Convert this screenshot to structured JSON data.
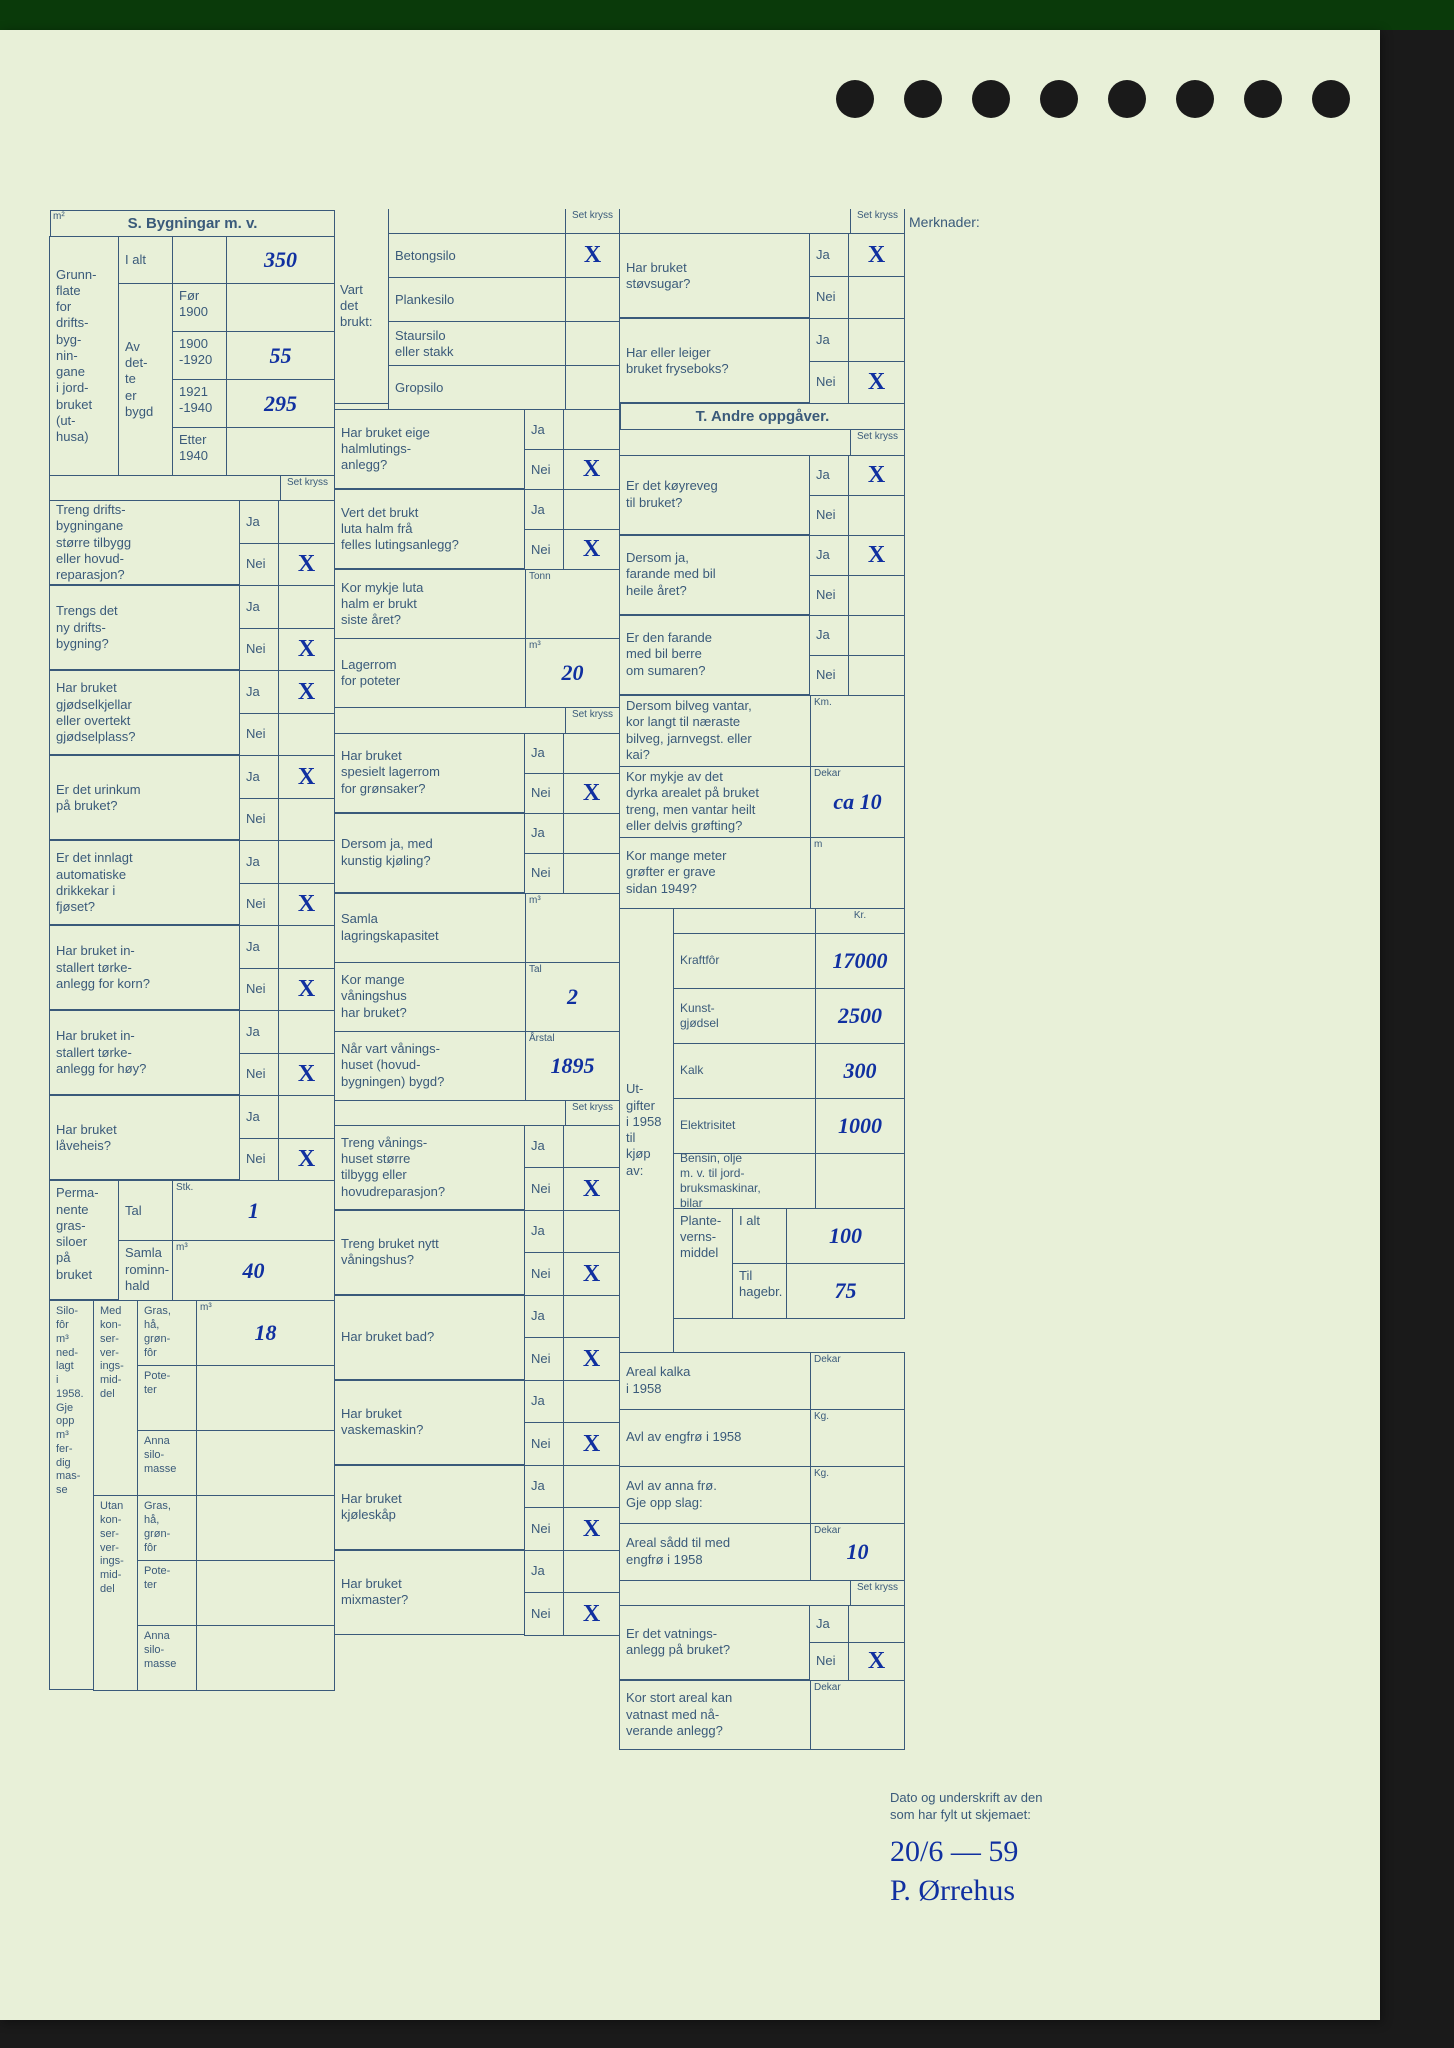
{
  "section_s_title": "S. Bygningar m. v.",
  "section_t_title": "T. Andre oppgåver.",
  "merknader_label": "Merknader:",
  "set_kryss": "Set kryss",
  "ja": "Ja",
  "nei": "Nei",
  "buildings": {
    "grunnflate_label": "Grunn-\nflate\nfor\ndrifts-\nbyg-\nnin-\ngane\ni jord-\nbruket\n(ut-\nhusa)",
    "i_alt": "I alt",
    "av_dette_bygd": "Av\ndet-\nte\ner\nbygd",
    "m2_unit": "m²",
    "periods": {
      "for_1900": "Før\n1900",
      "p1900_1920": "1900\n-1920",
      "p1921_1940": "1921\n-1940",
      "etter_1940": "Etter\n1940"
    },
    "values": {
      "i_alt": "350",
      "for_1900": "",
      "p1900_1920": "55",
      "p1921_1940": "295",
      "etter_1940": ""
    }
  },
  "col1_questions": [
    {
      "q": "Treng drifts-\nbygningane\nstørre tilbygg\neller hovud-\nreparasjon?",
      "ja": "",
      "nei": "X"
    },
    {
      "q": "Trengs det\nny drifts-\nbygning?",
      "ja": "",
      "nei": "X"
    },
    {
      "q": "Har bruket\ngjødselkjellar\neller overtekt\ngjødselplass?",
      "ja": "X",
      "nei": ""
    },
    {
      "q": "Er det urinkum\npå bruket?",
      "ja": "X",
      "nei": ""
    },
    {
      "q": "Er det innlagt\nautomatiske\ndrikkekar i\nfjøset?",
      "ja": "",
      "nei": "X"
    },
    {
      "q": "Har bruket in-\nstallert tørke-\nanlegg for korn?",
      "ja": "",
      "nei": "X"
    },
    {
      "q": "Har bruket in-\nstallert tørke-\nanlegg for høy?",
      "ja": "",
      "nei": "X"
    },
    {
      "q": "Har bruket\nlåveheis?",
      "ja": "",
      "nei": "X"
    }
  ],
  "grassiloer": {
    "label": "Perma-\nnente\ngras-\nsiloer\npå\nbruket",
    "tal_label": "Tal",
    "tal": "1",
    "rom_label": "Samla\nrominn-\nhald",
    "rom_unit": "m³",
    "rom": "40"
  },
  "silofor": {
    "title": "Silo-\nfôr\nm³\nned-\nlagt\ni\n1958.\nGje\nopp\nm³\nfer-\ndig\nmas-\nse",
    "med_label": "Med\nkon-\nser-\nver-\nings-\nmid-\ndel",
    "utan_label": "Utan\nkon-\nser-\nver-\nings-\nmid-\ndel",
    "gras_label": "Gras,\nhå,\ngrøn-\nfôr",
    "poteter_label": "Pote-\nter",
    "anna_label": "Anna\nsilo-\nmasse",
    "m2_unit": "m³",
    "med_gras": "18",
    "med_poteter": "",
    "med_anna": "",
    "utan_gras": "",
    "utan_poteter": "",
    "utan_anna": ""
  },
  "col2_top": {
    "vart_det_brukt": "Vart\ndet\nbrukt:",
    "items": [
      {
        "l": "Betongsilo",
        "v": "X"
      },
      {
        "l": "Plankesilo",
        "v": ""
      },
      {
        "l": "Staursilo\neller stakk",
        "v": ""
      },
      {
        "l": "Gropsilo",
        "v": ""
      }
    ]
  },
  "col2_questions": [
    {
      "q": "Har bruket eige\nhalmlutings-\nanlegg?",
      "ja": "",
      "nei": "X"
    },
    {
      "q": "Vert det brukt\nluta halm frå\nfelles lutingsanlegg?",
      "ja": "",
      "nei": "X"
    }
  ],
  "col2_values": [
    {
      "q": "Kor mykje luta\nhalm er brukt\nsiste året?",
      "unit": "Tonn",
      "v": ""
    },
    {
      "q": "Lagerrom\nfor poteter",
      "unit": "m³",
      "v": "20"
    }
  ],
  "col2_questions2": [
    {
      "q": "Har bruket\nspesielt lagerrom\nfor grønsaker?",
      "ja": "",
      "nei": "X"
    },
    {
      "q": "Dersom ja, med\nkunstig kjøling?",
      "ja": "",
      "nei": ""
    }
  ],
  "col2_values2": [
    {
      "q": "Samla\nlagringskapasitet",
      "unit": "m³",
      "v": ""
    },
    {
      "q": "Kor mange\nvåningshus\nhar bruket?",
      "unit": "Tal",
      "v": "2"
    },
    {
      "q": "Når vart vånings-\nhuset (hovud-\nbygningen) bygd?",
      "unit": "Årstal",
      "v": "1895"
    }
  ],
  "col2_questions3": [
    {
      "q": "Treng vånings-\nhuset større\ntilbygg eller\nhovudreparasjon?",
      "ja": "",
      "nei": "X"
    },
    {
      "q": "Treng bruket nytt\nvåningshus?",
      "ja": "",
      "nei": "X"
    },
    {
      "q": "Har bruket bad?",
      "ja": "",
      "nei": "X"
    },
    {
      "q": "Har bruket\nvaskemaskin?",
      "ja": "",
      "nei": "X"
    },
    {
      "q": "Har bruket\nkjøleskåp",
      "ja": "",
      "nei": "X"
    },
    {
      "q": "Har bruket\nmixmaster?",
      "ja": "",
      "nei": "X"
    }
  ],
  "col3_questions": [
    {
      "q": "Har bruket\nstøvsugar?",
      "ja": "X",
      "nei": ""
    },
    {
      "q": "Har eller leiger\nbruket fryseboks?",
      "ja": "",
      "nei": "X"
    }
  ],
  "t_questions": [
    {
      "q": "Er det køyreveg\ntil bruket?",
      "ja": "X",
      "nei": ""
    },
    {
      "q": "Dersom ja,\nfarande med bil\nheile året?",
      "ja": "X",
      "nei": ""
    },
    {
      "q": "Er den farande\nmed bil berre\nom sumaren?",
      "ja": "",
      "nei": ""
    }
  ],
  "t_values": [
    {
      "q": "Dersom bilveg vantar,\nkor langt til næraste\nbilveg, jarnvegst. eller\nkai?",
      "unit": "Km.",
      "v": ""
    },
    {
      "q": "Kor mykje av det\ndyrka arealet på bruket\ntreng, men vantar heilt\neller delvis grøfting?",
      "unit": "Dekar",
      "v": "ca 10"
    },
    {
      "q": "Kor mange meter\ngrøfter er grave\nsidan 1949?",
      "unit": "m",
      "v": ""
    }
  ],
  "utgifter": {
    "title": "Ut-\ngifter\ni 1958\ntil\nkjøp\nav:",
    "kr": "Kr.",
    "rows": [
      {
        "l": "Kraftfôr",
        "v": "17000"
      },
      {
        "l": "Kunst-\ngjødsel",
        "v": "2500"
      },
      {
        "l": "Kalk",
        "v": "300"
      },
      {
        "l": "Elektrisitet",
        "v": "1000"
      },
      {
        "l": "Bensin, olje\nm. v. til jord-\nbruksmaskinar,\nbilar",
        "v": ""
      }
    ],
    "plantevern": {
      "label": "Plante-\nverns-\nmiddel",
      "i_alt_label": "I alt",
      "i_alt": "100",
      "hagebr_label": "Til\nhagebr.",
      "hagebr": "75"
    }
  },
  "col3_bottom": [
    {
      "q": "Areal kalka\ni 1958",
      "unit": "Dekar",
      "v": ""
    },
    {
      "q": "Avl av engfrø i 1958",
      "unit": "Kg.",
      "v": ""
    },
    {
      "q": "Avl av anna frø.\nGje opp slag:",
      "unit": "Kg.",
      "v": ""
    },
    {
      "q": "Areal sådd til med\nengfrø i 1958",
      "unit": "Dekar",
      "v": "10"
    }
  ],
  "col3_q2": [
    {
      "q": "Er det vatnings-\nanlegg på bruket?",
      "ja": "",
      "nei": "X"
    }
  ],
  "col3_v2": [
    {
      "q": "Kor stort areal kan\nvatnast med nå-\nverande anlegg?",
      "unit": "Dekar",
      "v": ""
    }
  ],
  "signature": {
    "label": "Dato og underskrift av den\nsom har fylt ut skjemaet:",
    "date": "20/6 — 59",
    "name": "P. Ørrehus"
  },
  "colors": {
    "paper": "#e8f0d8",
    "ink_printed": "#3a5a7a",
    "ink_handwritten": "#1030a0",
    "background": "#1a1a1a"
  }
}
